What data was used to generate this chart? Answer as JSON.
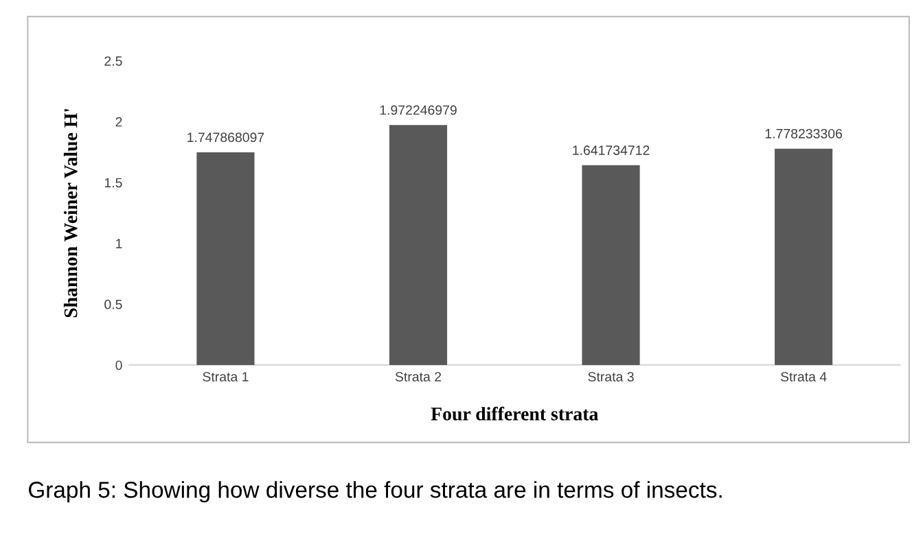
{
  "chart_data": {
    "type": "bar",
    "ylabel": "Shannon Weiner Value H'",
    "xlabel": "Four different strata",
    "categories": [
      "Strata 1",
      "Strata 2",
      "Strata 3",
      "Strata 4"
    ],
    "values": [
      1.747868097,
      1.972246979,
      1.641734712,
      1.778233306
    ],
    "color": "#595959",
    "ylim": [
      0,
      2.5
    ],
    "yticks": [
      0,
      0.5,
      1,
      1.5,
      2,
      2.5
    ],
    "data_labels": true,
    "grid": false,
    "legend": false,
    "annotations": [
      "Graph 5: Showing how diverse the four strata are in terms of insects."
    ]
  }
}
